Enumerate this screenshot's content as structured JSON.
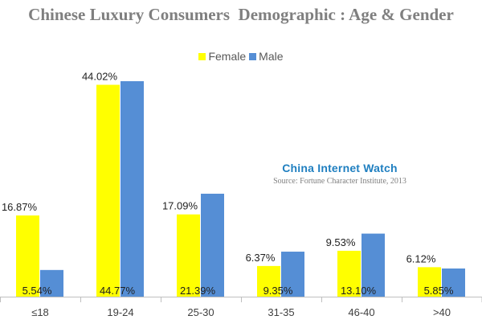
{
  "chart_data": {
    "type": "bar",
    "title": "Chinese Luxury Consumers  Demographic : Age & Gender",
    "categories": [
      "≤18",
      "19-24",
      "25-30",
      "31-35",
      "46-40",
      ">40"
    ],
    "series": [
      {
        "name": "Female",
        "color": "#ffff00",
        "values": [
          16.87,
          44.02,
          17.09,
          6.37,
          9.53,
          6.12
        ],
        "labels": [
          "16.87%",
          "44.02%",
          "17.09%",
          "6.37%",
          "9.53%",
          "6.12%"
        ]
      },
      {
        "name": "Male",
        "color": "#558ed5",
        "values": [
          5.54,
          44.77,
          21.39,
          9.35,
          13.1,
          5.85
        ],
        "labels": [
          "5.54%",
          "44.77%",
          "21.39%",
          "9.35%",
          "13.10%",
          "5.85%"
        ]
      }
    ],
    "ylim": [
      0,
      50
    ],
    "grid": false,
    "legend_position": "top-center",
    "y_axis_visible": false
  },
  "watermark": {
    "name": "China Internet Watch",
    "source": "Source: Fortune Character Institute, 2013"
  }
}
